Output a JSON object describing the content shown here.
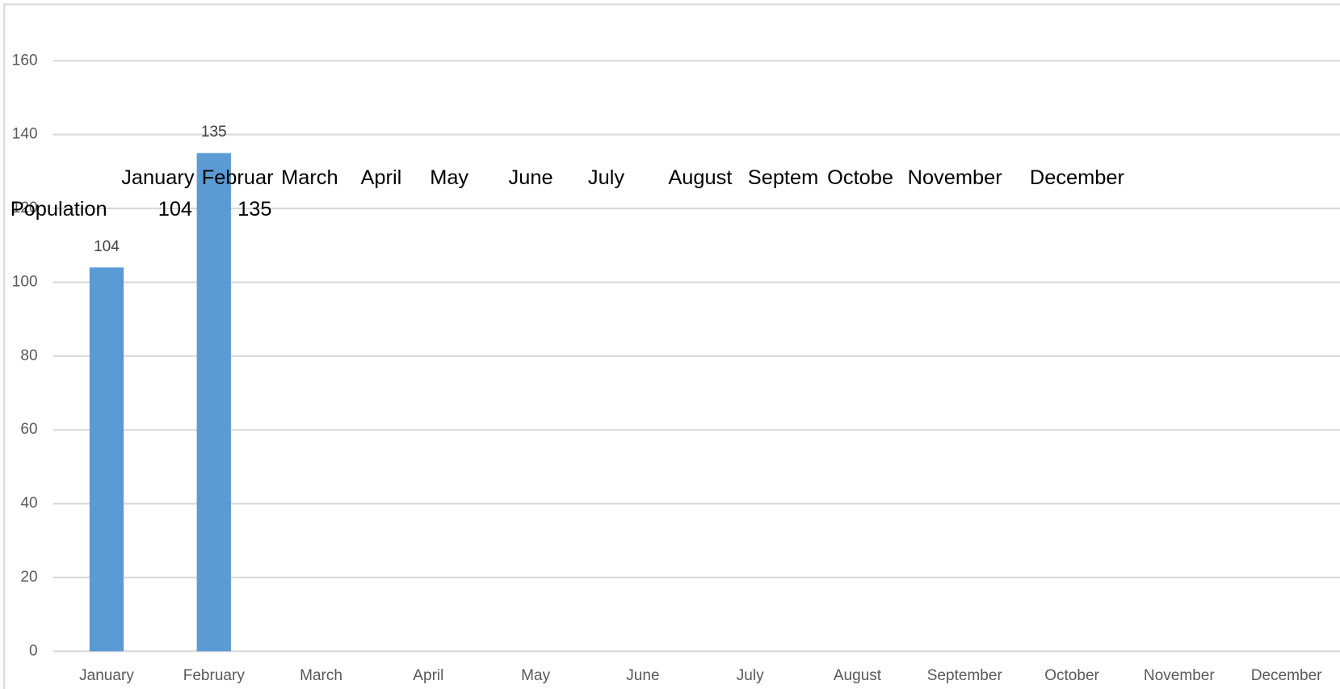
{
  "chart_data": {
    "type": "bar",
    "categories": [
      "January",
      "February",
      "March",
      "April",
      "May",
      "June",
      "July",
      "August",
      "September",
      "October",
      "November",
      "December"
    ],
    "values": [
      104,
      135,
      null,
      null,
      null,
      null,
      null,
      null,
      null,
      null,
      null,
      null
    ],
    "color": "#5b9bd5",
    "ylim": [
      0,
      160
    ],
    "yticks": [
      0,
      20,
      40,
      60,
      80,
      100,
      120,
      140,
      160
    ],
    "grid": true
  },
  "sheet": {
    "header": [
      "January",
      "Februar",
      "March",
      "April",
      "May",
      "June",
      "July",
      "August",
      "Septem",
      "Octobe",
      "November",
      "December"
    ],
    "rows": [
      [
        "Population",
        104,
        135
      ]
    ]
  }
}
